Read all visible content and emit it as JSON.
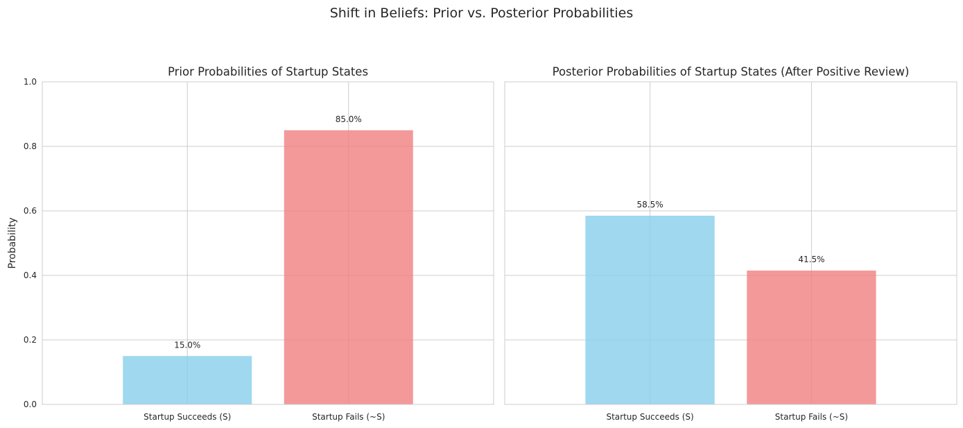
{
  "figure": {
    "suptitle": "Shift in Beliefs: Prior vs. Posterior Probabilities"
  },
  "chart_data": [
    {
      "type": "bar",
      "title": "Prior Probabilities of Startup States",
      "xlabel": "",
      "ylabel": "Probability",
      "categories": [
        "Startup Succeeds (S)",
        "Startup Fails (~S)"
      ],
      "values": [
        0.15,
        0.85
      ],
      "data_labels": [
        "15.0%",
        "85.0%"
      ],
      "colors": [
        "#87ceeb",
        "#f08080"
      ],
      "ylim": [
        0,
        1
      ],
      "yticks": [
        0.0,
        0.2,
        0.4,
        0.6,
        0.8,
        1.0
      ],
      "ytick_labels": [
        "0.0",
        "0.2",
        "0.4",
        "0.6",
        "0.8",
        "1.0"
      ],
      "grid": true
    },
    {
      "type": "bar",
      "title": "Posterior Probabilities of Startup States (After Positive Review)",
      "xlabel": "",
      "ylabel": "",
      "categories": [
        "Startup Succeeds (S)",
        "Startup Fails (~S)"
      ],
      "values": [
        0.585,
        0.415
      ],
      "data_labels": [
        "58.5%",
        "41.5%"
      ],
      "colors": [
        "#87ceeb",
        "#f08080"
      ],
      "ylim": [
        0,
        1
      ],
      "yticks": [
        0.0,
        0.2,
        0.4,
        0.6,
        0.8,
        1.0
      ],
      "ytick_labels": [],
      "grid": true
    }
  ]
}
